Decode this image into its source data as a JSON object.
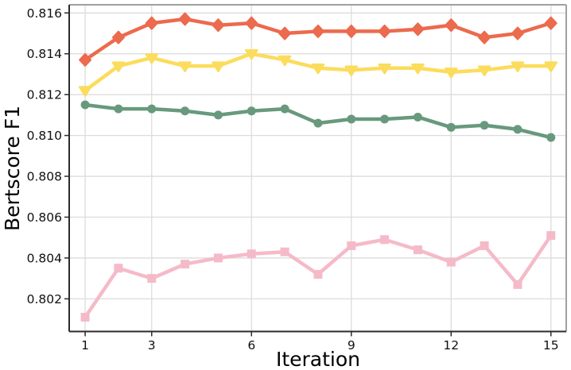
{
  "figure": {
    "background": "#FFFFFF"
  },
  "chart_data": {
    "type": "line",
    "title": "",
    "xlabel": "Iteration",
    "ylabel": "Bertscore F1",
    "x": [
      1,
      2,
      3,
      4,
      5,
      6,
      7,
      8,
      9,
      10,
      11,
      12,
      13,
      14,
      15
    ],
    "series": [
      {
        "name": "orange-diamond-line",
        "marker": "diamond",
        "color": "#EC6A4D",
        "values": [
          0.8137,
          0.8148,
          0.8155,
          0.8157,
          0.8154,
          0.8155,
          0.815,
          0.8151,
          0.8151,
          0.8151,
          0.8152,
          0.8154,
          0.8148,
          0.815,
          0.8155
        ]
      },
      {
        "name": "yellow-triangle-line",
        "marker": "triangle-down",
        "color": "#FBDC5C",
        "values": [
          0.8122,
          0.8134,
          0.8138,
          0.8134,
          0.8134,
          0.814,
          0.8137,
          0.8133,
          0.8132,
          0.8133,
          0.8133,
          0.8131,
          0.8132,
          0.8134,
          0.8134
        ]
      },
      {
        "name": "green-circle-line",
        "marker": "circle",
        "color": "#68997D",
        "values": [
          0.8115,
          0.8113,
          0.8113,
          0.8112,
          0.811,
          0.8112,
          0.8113,
          0.8106,
          0.8108,
          0.8108,
          0.8109,
          0.8104,
          0.8105,
          0.8103,
          0.8099
        ]
      },
      {
        "name": "pink-square-line",
        "marker": "square",
        "color": "#F5BAC8",
        "values": [
          0.8011,
          0.8035,
          0.803,
          0.8037,
          0.804,
          0.8042,
          0.8043,
          0.8032,
          0.8046,
          0.8049,
          0.8044,
          0.8038,
          0.8046,
          0.8027,
          0.8051
        ]
      }
    ],
    "xticks": [
      1,
      3,
      6,
      9,
      12,
      15
    ],
    "xtick_labels": [
      "1",
      "3",
      "6",
      "9",
      "12",
      "15"
    ],
    "yticks": [
      0.802,
      0.804,
      0.806,
      0.808,
      0.81,
      0.812,
      0.814,
      0.816
    ],
    "ytick_labels": [
      "0.802",
      "0.804",
      "0.806",
      "0.808",
      "0.810",
      "0.812",
      "0.814",
      "0.816"
    ],
    "xlim": [
      0.52,
      15.46
    ],
    "ylim": [
      0.8004,
      0.8164
    ],
    "grid": true,
    "legend": "none",
    "colors": {
      "grid": "#DCDCDC",
      "axis_dark": "#2B2B2B",
      "axis_light": "#A0A0A0",
      "text": "#000000"
    }
  }
}
